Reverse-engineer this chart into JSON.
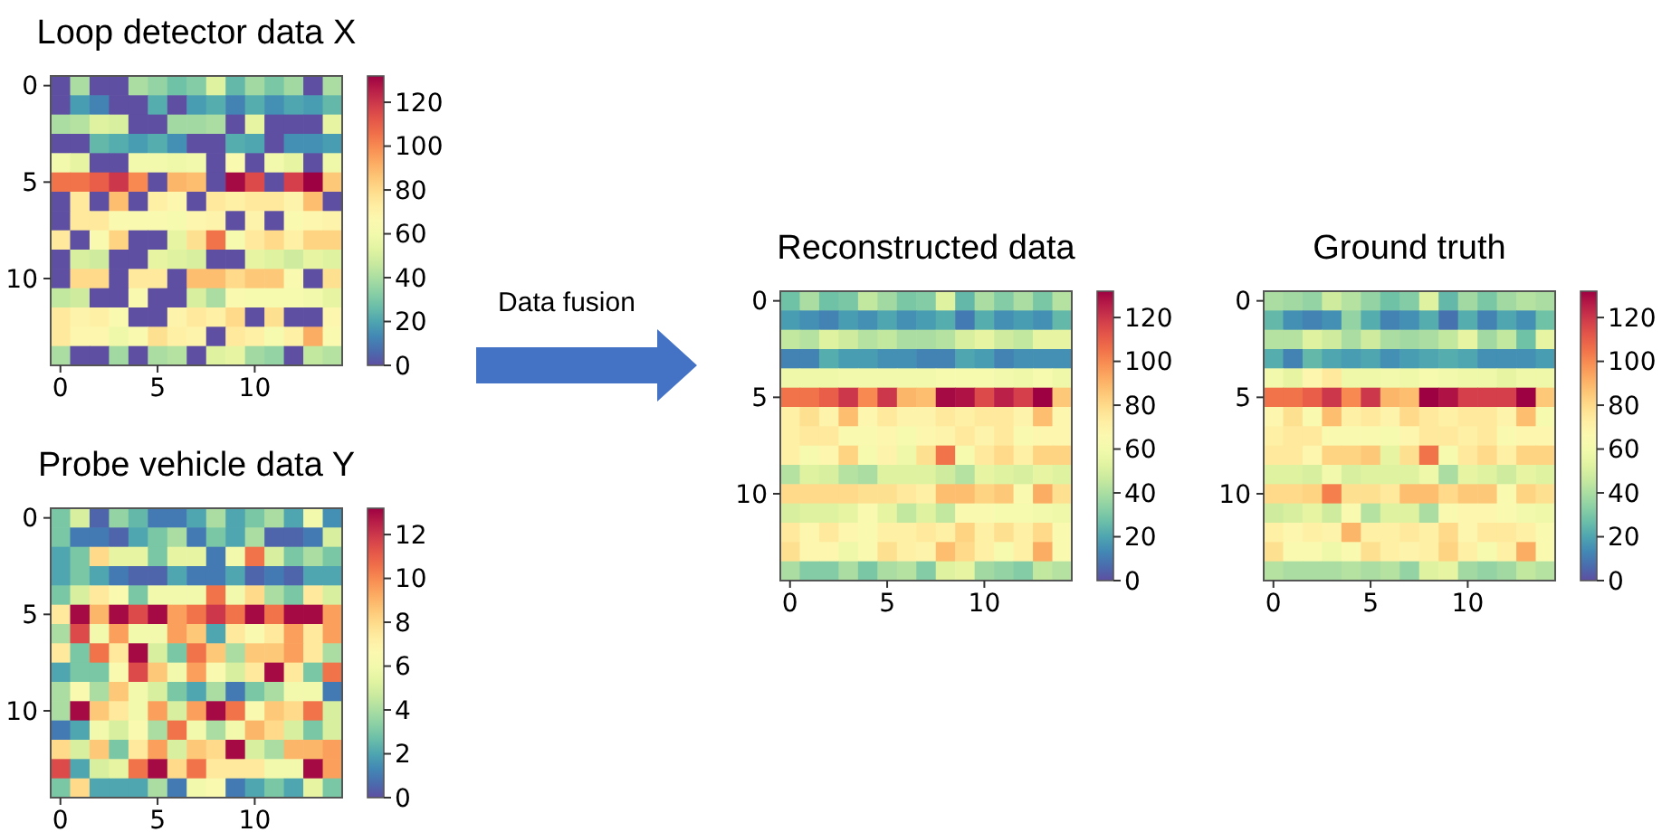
{
  "chart_data": [
    {
      "type": "heatmap",
      "title": "Loop detector data X",
      "categories": [
        "0",
        null,
        null,
        null,
        null,
        "5",
        null,
        null,
        null,
        null,
        "10",
        null,
        null,
        null,
        null
      ],
      "y_categories": [
        "0",
        null,
        null,
        null,
        null,
        "5",
        null,
        null,
        null,
        null,
        "10",
        null,
        null,
        null,
        null
      ],
      "clim": [
        0,
        132
      ],
      "cticks": [
        0,
        20,
        40,
        60,
        80,
        100,
        120
      ],
      "cells": [
        [
          0,
          40,
          0,
          0,
          40,
          35,
          28,
          32,
          52,
          25,
          38,
          30,
          38,
          0,
          40
        ],
        [
          0,
          18,
          12,
          0,
          0,
          22,
          0,
          18,
          22,
          12,
          22,
          15,
          20,
          18,
          25
        ],
        [
          40,
          42,
          52,
          50,
          0,
          0,
          38,
          38,
          40,
          0,
          55,
          0,
          0,
          0,
          55
        ],
        [
          0,
          0,
          25,
          22,
          18,
          22,
          15,
          0,
          0,
          22,
          20,
          0,
          15,
          15,
          18
        ],
        [
          60,
          55,
          0,
          0,
          60,
          60,
          58,
          60,
          0,
          65,
          0,
          60,
          55,
          0,
          58
        ],
        [
          105,
          105,
          110,
          120,
          100,
          0,
          90,
          88,
          0,
          130,
          115,
          0,
          118,
          132,
          85
        ],
        [
          0,
          75,
          0,
          88,
          0,
          72,
          68,
          0,
          75,
          72,
          75,
          75,
          70,
          88,
          0
        ],
        [
          0,
          75,
          75,
          65,
          65,
          65,
          62,
          68,
          70,
          0,
          70,
          0,
          65,
          68,
          70
        ],
        [
          75,
          0,
          65,
          82,
          0,
          0,
          55,
          78,
          105,
          62,
          75,
          80,
          72,
          82,
          82
        ],
        [
          0,
          50,
          48,
          0,
          0,
          55,
          52,
          50,
          0,
          0,
          55,
          52,
          48,
          55,
          52
        ],
        [
          0,
          80,
          80,
          0,
          75,
          75,
          0,
          88,
          88,
          80,
          85,
          85,
          65,
          0,
          78
        ],
        [
          45,
          48,
          0,
          0,
          65,
          0,
          0,
          50,
          40,
          65,
          62,
          62,
          62,
          60,
          55
        ],
        [
          75,
          70,
          72,
          65,
          0,
          0,
          70,
          75,
          72,
          80,
          0,
          78,
          0,
          0,
          68
        ],
        [
          75,
          68,
          68,
          58,
          65,
          78,
          72,
          70,
          0,
          75,
          72,
          62,
          72,
          92,
          65
        ],
        [
          40,
          0,
          0,
          38,
          0,
          40,
          42,
          0,
          52,
          55,
          38,
          35,
          0,
          45,
          42
        ]
      ]
    },
    {
      "type": "heatmap",
      "title": "Probe vehicle data Y",
      "categories": [
        "0",
        null,
        null,
        null,
        null,
        "5",
        null,
        null,
        null,
        null,
        "10",
        null,
        null,
        null,
        null
      ],
      "y_categories": [
        "0",
        null,
        null,
        null,
        null,
        "5",
        null,
        null,
        null,
        null,
        "10",
        null,
        null,
        null,
        null
      ],
      "clim": [
        0,
        13.2
      ],
      "cticks": [
        0,
        2,
        4,
        6,
        8,
        10,
        12
      ],
      "cells": [
        [
          3,
          5,
          0.5,
          3.5,
          2.5,
          1,
          1,
          2,
          4,
          2,
          3,
          4,
          2,
          6,
          1.5
        ],
        [
          3,
          1,
          1,
          0.5,
          2,
          3,
          4,
          1,
          3,
          2,
          4,
          0.5,
          0.5,
          1,
          5
        ],
        [
          2,
          3,
          8,
          5.5,
          5.5,
          3,
          5.5,
          5.5,
          1,
          6,
          10.5,
          5,
          3,
          4,
          3
        ],
        [
          2,
          3,
          2,
          1,
          0.5,
          0.5,
          2,
          1,
          1,
          2,
          0.5,
          1,
          0.5,
          2,
          2
        ],
        [
          3,
          5,
          7.5,
          6.5,
          3,
          6,
          6,
          6,
          10.5,
          6,
          8,
          4,
          3,
          7.5,
          5
        ],
        [
          7.5,
          13,
          9,
          13,
          11.5,
          13,
          9.5,
          10.5,
          12,
          10.5,
          13,
          10.5,
          13,
          13,
          9.5
        ],
        [
          4,
          11.5,
          6,
          9.5,
          6,
          6,
          9.5,
          8.5,
          2,
          7.5,
          6.5,
          7.5,
          9.5,
          7.5,
          9.5
        ],
        [
          7.5,
          3,
          10.5,
          7.5,
          13,
          5,
          3,
          10.5,
          8.5,
          4,
          8.5,
          8.5,
          9.5,
          7.5,
          4
        ],
        [
          2,
          3,
          3,
          6.5,
          11.5,
          8.5,
          6,
          9.5,
          6.5,
          5,
          7.5,
          13,
          7.5,
          3,
          10.5
        ],
        [
          4,
          6.5,
          4,
          8.5,
          6,
          5,
          3,
          2,
          4,
          1,
          3,
          4,
          6,
          6,
          1
        ],
        [
          4,
          13,
          8.5,
          7.5,
          6,
          9.5,
          5,
          9.5,
          13,
          10.5,
          6.5,
          8.5,
          8,
          10.5,
          5
        ],
        [
          1,
          2,
          6,
          5,
          6.5,
          4,
          10.5,
          6,
          4,
          6,
          9,
          8,
          5,
          3,
          5
        ],
        [
          8,
          5,
          8.5,
          3,
          7.5,
          9.5,
          5,
          8.5,
          8,
          13,
          5,
          4,
          9,
          9,
          9.5
        ],
        [
          11.5,
          2,
          5,
          5.5,
          10.5,
          13,
          8,
          10.5,
          7.5,
          7.5,
          7.5,
          6,
          6,
          13,
          9.5
        ],
        [
          3,
          8,
          2,
          2,
          2,
          4,
          1,
          6,
          6.5,
          1,
          2,
          3,
          2,
          5.5,
          3
        ]
      ]
    },
    {
      "type": "other",
      "annotations": [
        "Data fusion"
      ]
    },
    {
      "type": "heatmap",
      "title": "Reconstructed data",
      "categories": [
        "0",
        null,
        null,
        null,
        null,
        "5",
        null,
        null,
        null,
        null,
        "10",
        null,
        null,
        null,
        null
      ],
      "y_categories": [
        "0",
        null,
        null,
        null,
        null,
        "5",
        null,
        null,
        null,
        null,
        "10",
        null,
        null,
        null,
        null
      ],
      "clim": [
        0,
        132
      ],
      "cticks": [
        0,
        20,
        40,
        60,
        80,
        100,
        120
      ],
      "cells": [
        [
          28,
          40,
          28,
          30,
          45,
          38,
          30,
          32,
          52,
          25,
          40,
          32,
          40,
          30,
          42
        ],
        [
          18,
          15,
          12,
          18,
          15,
          20,
          15,
          18,
          22,
          10,
          22,
          15,
          18,
          15,
          25
        ],
        [
          45,
          42,
          52,
          48,
          42,
          45,
          40,
          40,
          42,
          50,
          55,
          48,
          45,
          55,
          55
        ],
        [
          12,
          12,
          22,
          18,
          18,
          15,
          15,
          12,
          12,
          20,
          18,
          12,
          15,
          15,
          15
        ],
        [
          58,
          58,
          58,
          60,
          60,
          60,
          60,
          60,
          62,
          62,
          62,
          60,
          58,
          62,
          58
        ],
        [
          105,
          105,
          110,
          120,
          100,
          120,
          90,
          88,
          130,
          128,
          115,
          125,
          118,
          132,
          85
        ],
        [
          72,
          78,
          70,
          88,
          68,
          75,
          70,
          70,
          75,
          72,
          75,
          75,
          70,
          88,
          68
        ],
        [
          72,
          75,
          75,
          65,
          65,
          68,
          62,
          68,
          70,
          75,
          70,
          75,
          65,
          68,
          68
        ],
        [
          72,
          62,
          68,
          82,
          62,
          70,
          58,
          78,
          105,
          62,
          75,
          80,
          72,
          82,
          82
        ],
        [
          42,
          52,
          50,
          42,
          40,
          52,
          52,
          52,
          48,
          42,
          55,
          52,
          50,
          55,
          52
        ],
        [
          80,
          80,
          80,
          80,
          78,
          78,
          75,
          72,
          88,
          88,
          82,
          85,
          65,
          92,
          78
        ],
        [
          50,
          52,
          52,
          55,
          65,
          55,
          45,
          52,
          45,
          65,
          65,
          62,
          62,
          60,
          58
        ],
        [
          75,
          68,
          75,
          68,
          65,
          72,
          72,
          75,
          72,
          82,
          72,
          78,
          72,
          80,
          65
        ],
        [
          78,
          68,
          68,
          58,
          65,
          78,
          72,
          70,
          88,
          80,
          72,
          62,
          72,
          92,
          65
        ],
        [
          40,
          32,
          32,
          40,
          30,
          40,
          42,
          32,
          52,
          55,
          38,
          35,
          32,
          45,
          42
        ]
      ]
    },
    {
      "type": "heatmap",
      "title": "Ground truth",
      "categories": [
        "0",
        null,
        null,
        null,
        null,
        "5",
        null,
        null,
        null,
        null,
        "10",
        null,
        null,
        null,
        null
      ],
      "y_categories": [
        "0",
        null,
        null,
        null,
        null,
        "5",
        null,
        null,
        null,
        null,
        "10",
        null,
        null,
        null,
        null
      ],
      "clim": [
        0,
        132
      ],
      "cticks": [
        0,
        20,
        40,
        60,
        80,
        100,
        120
      ],
      "cells": [
        [
          40,
          38,
          35,
          48,
          42,
          35,
          28,
          32,
          52,
          25,
          38,
          30,
          38,
          42,
          40
        ],
        [
          25,
          15,
          12,
          15,
          35,
          22,
          12,
          15,
          22,
          8,
          22,
          12,
          20,
          15,
          28
        ],
        [
          42,
          42,
          52,
          48,
          40,
          48,
          40,
          38,
          40,
          45,
          55,
          38,
          45,
          28,
          55
        ],
        [
          22,
          12,
          25,
          20,
          18,
          20,
          15,
          18,
          20,
          22,
          20,
          15,
          15,
          15,
          18
        ],
        [
          60,
          55,
          68,
          75,
          58,
          58,
          60,
          58,
          62,
          60,
          58,
          58,
          55,
          58,
          58
        ],
        [
          105,
          105,
          110,
          120,
          100,
          120,
          90,
          88,
          132,
          128,
          118,
          118,
          118,
          132,
          85
        ],
        [
          68,
          78,
          65,
          88,
          72,
          75,
          70,
          80,
          75,
          72,
          75,
          75,
          70,
          88,
          62
        ],
        [
          72,
          75,
          75,
          65,
          65,
          65,
          62,
          68,
          75,
          75,
          72,
          75,
          65,
          68,
          68
        ],
        [
          75,
          75,
          68,
          82,
          82,
          85,
          55,
          78,
          105,
          62,
          75,
          80,
          72,
          82,
          82
        ],
        [
          52,
          52,
          50,
          60,
          50,
          52,
          52,
          52,
          58,
          40,
          55,
          52,
          48,
          55,
          52
        ],
        [
          80,
          80,
          82,
          102,
          78,
          78,
          75,
          88,
          88,
          80,
          85,
          85,
          65,
          82,
          78
        ],
        [
          48,
          50,
          55,
          48,
          65,
          42,
          52,
          52,
          40,
          65,
          68,
          68,
          65,
          60,
          58
        ],
        [
          72,
          68,
          72,
          70,
          90,
          72,
          72,
          75,
          72,
          80,
          68,
          75,
          75,
          72,
          65
        ],
        [
          78,
          65,
          65,
          58,
          65,
          78,
          72,
          70,
          72,
          82,
          72,
          62,
          72,
          92,
          65
        ],
        [
          42,
          40,
          40,
          40,
          42,
          40,
          42,
          35,
          52,
          55,
          38,
          35,
          38,
          45,
          42
        ]
      ]
    }
  ]
}
